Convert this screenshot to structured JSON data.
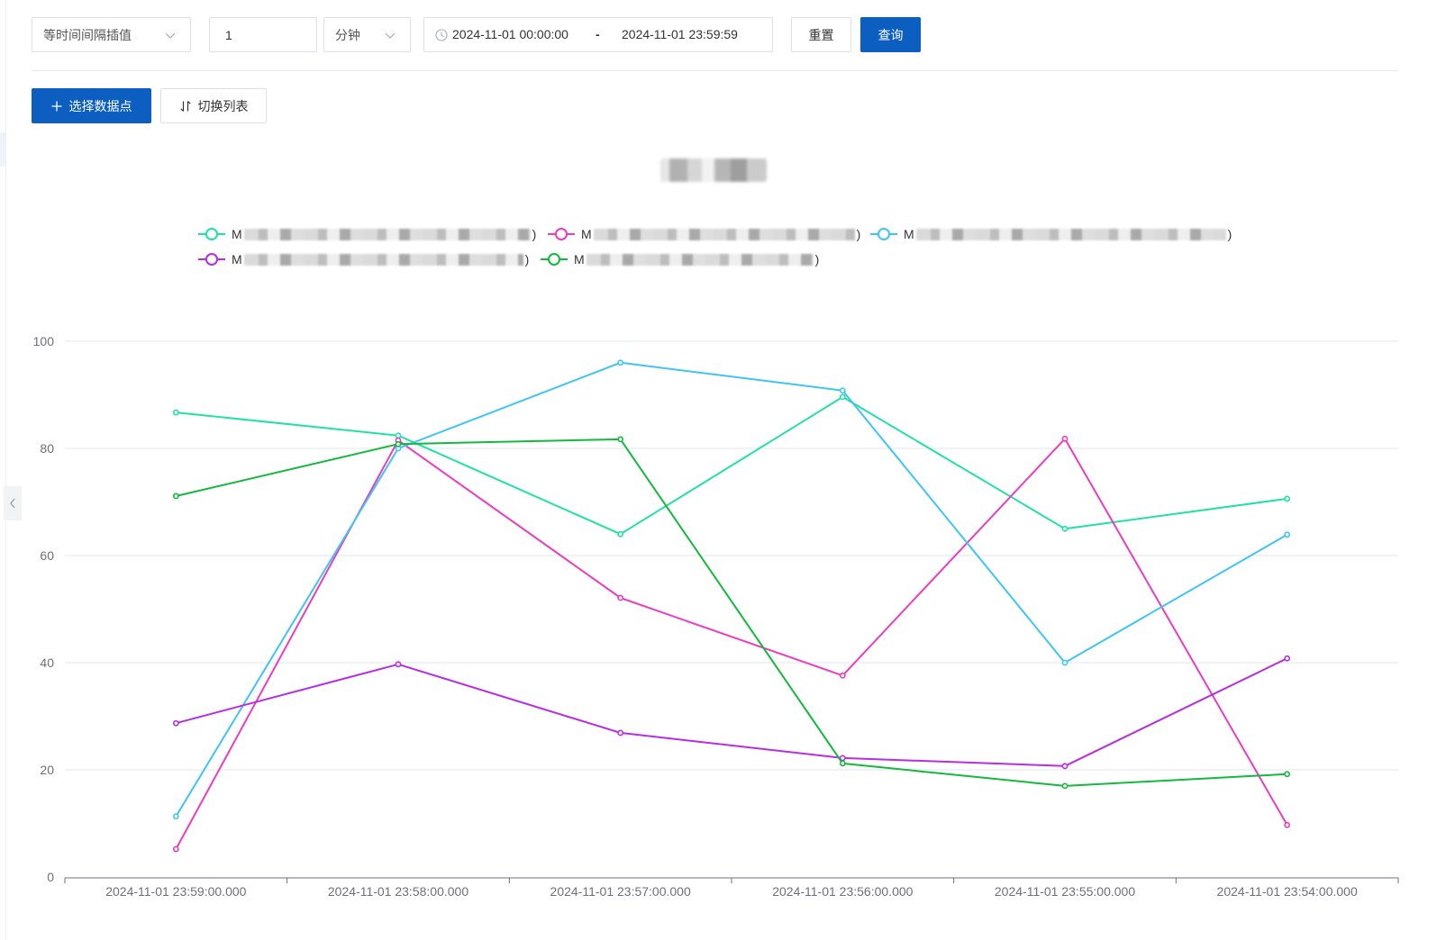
{
  "theme": {
    "primary": "#0c5ec0"
  },
  "toolbar": {
    "interpolation_select": {
      "value": "等时间间隔插值",
      "icon": "chevron-down-icon"
    },
    "interval_input": {
      "value": "1"
    },
    "unit_select": {
      "value": "分钟",
      "icon": "chevron-down-icon"
    },
    "date_range": {
      "icon": "clock-icon",
      "start": "2024-11-01 00:00:00",
      "separator": "-",
      "end": "2024-11-01 23:59:59"
    },
    "reset_button": {
      "label": "重置"
    },
    "query_button": {
      "label": "查询"
    }
  },
  "actions": {
    "select_points_button": {
      "icon": "plus-icon",
      "label": "选择数据点"
    },
    "toggle_list_button": {
      "icon": "swap-vertical-icon",
      "label": "切换列表"
    }
  },
  "sidebar": {
    "collapse_icon": "chevron-left-icon"
  },
  "chart_data": {
    "type": "line",
    "title": "",
    "xlabel": "",
    "ylabel": "",
    "categories": [
      "2024-11-01 23:59:00.000",
      "2024-11-01 23:58:00.000",
      "2024-11-01 23:57:00.000",
      "2024-11-01 23:56:00.000",
      "2024-11-01 23:55:00.000",
      "2024-11-01 23:54:00.000"
    ],
    "y_ticks": [
      0,
      20,
      40,
      60,
      80,
      100
    ],
    "ylim": [
      0,
      100
    ],
    "grid": true,
    "legend_position": "top",
    "series": [
      {
        "label_start": "M",
        "label_end": ")",
        "color": "#21e1a5",
        "values": [
          86.7,
          82.4,
          64.0,
          89.6,
          65.0,
          70.6
        ]
      },
      {
        "label_start": "M",
        "label_end": ")",
        "color": "#ec3dbf",
        "values": [
          5.2,
          81.5,
          52.1,
          37.6,
          81.8,
          9.7
        ]
      },
      {
        "label_start": "M",
        "label_end": ")",
        "color": "#3ec5f4",
        "values": [
          11.3,
          80.0,
          96.0,
          90.8,
          40.0,
          63.9
        ]
      },
      {
        "label_start": "M",
        "label_end": ")",
        "color": "#b82ce3",
        "values": [
          28.7,
          39.7,
          26.9,
          22.2,
          20.7,
          40.8
        ]
      },
      {
        "label_start": "M",
        "label_end": ")",
        "color": "#13b93c",
        "values": [
          71.1,
          80.8,
          81.7,
          21.2,
          17.0,
          19.2
        ]
      }
    ]
  }
}
